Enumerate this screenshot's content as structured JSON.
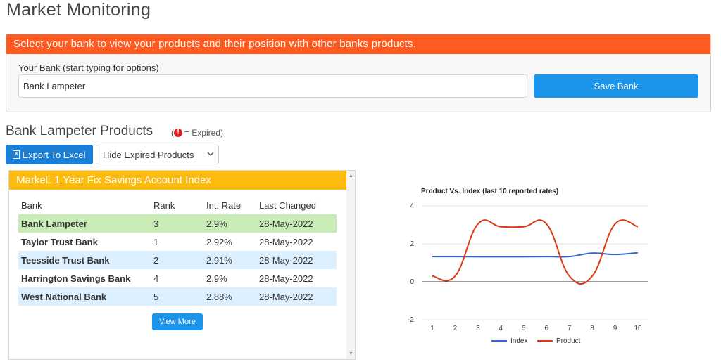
{
  "page": {
    "title": "Market Monitoring"
  },
  "bank_panel": {
    "header": "Select your bank to view your products and their position with other banks products.",
    "label": "Your Bank (start typing for options)",
    "input_value": "Bank Lampeter",
    "save_label": "Save Bank"
  },
  "products": {
    "heading": "Bank Lampeter Products",
    "expired_note_open": "(",
    "expired_note_text": " = Expired)",
    "export_label": "Export To Excel",
    "filter_selected": "Hide Expired Products"
  },
  "market": {
    "title": "Market: 1 Year Fix Savings Account Index",
    "columns": [
      "Bank",
      "Rank",
      "Int. Rate",
      "Last Changed"
    ],
    "rows": [
      {
        "bank": "Bank Lampeter",
        "rank": "3",
        "rate": "2.9%",
        "changed": "28-May-2022"
      },
      {
        "bank": "Taylor Trust Bank",
        "rank": "1",
        "rate": "2.92%",
        "changed": "28-May-2022"
      },
      {
        "bank": "Teesside Trust Bank",
        "rank": "2",
        "rate": "2.91%",
        "changed": "28-May-2022"
      },
      {
        "bank": "Harrington Savings Bank",
        "rank": "4",
        "rate": "2.9%",
        "changed": "28-May-2022"
      },
      {
        "bank": "West National Bank",
        "rank": "5",
        "rate": "2.88%",
        "changed": "28-May-2022"
      }
    ],
    "view_more_label": "View More"
  },
  "colors": {
    "panel_header": "#ff5a1f",
    "market_header": "#fdbb10",
    "primary_button": "#1c94ea",
    "row_highlight": "#c9ebb6",
    "row_alt": "#dcefff",
    "index_line": "#3366cc",
    "product_line": "#dc3912"
  },
  "icons": {
    "expired": "exclamation-circle-icon",
    "export": "excel-file-icon",
    "dropdown": "chevron-down-icon"
  },
  "chart_data": {
    "type": "line",
    "title": "Product Vs. Index (last 10 reported rates)",
    "x": [
      1,
      2,
      3,
      4,
      5,
      6,
      7,
      8,
      9,
      10
    ],
    "series": [
      {
        "name": "Index",
        "values": [
          1.33,
          1.33,
          1.32,
          1.32,
          1.32,
          1.33,
          1.33,
          1.51,
          1.44,
          1.53
        ]
      },
      {
        "name": "Product",
        "values": [
          0.3,
          0.3,
          3.05,
          2.9,
          2.9,
          3.05,
          0.3,
          0.3,
          3.05,
          2.9
        ]
      }
    ],
    "ylim": [
      -2,
      4
    ],
    "yticks": [
      -2,
      0,
      2,
      4
    ],
    "grid": true,
    "legend": "bottom"
  }
}
